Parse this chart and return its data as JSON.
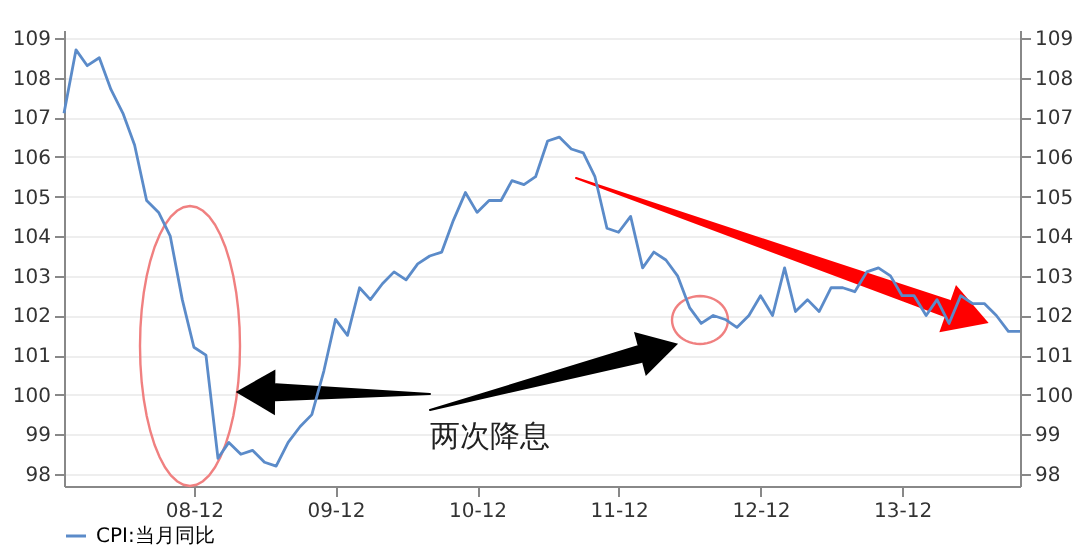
{
  "chart_data": {
    "type": "line",
    "x": [
      "2008-01",
      "2008-02",
      "2008-03",
      "2008-04",
      "2008-05",
      "2008-06",
      "2008-07",
      "2008-08",
      "2008-09",
      "2008-10",
      "2008-11",
      "2008-12",
      "2009-01",
      "2009-02",
      "2009-03",
      "2009-04",
      "2009-05",
      "2009-06",
      "2009-07",
      "2009-08",
      "2009-09",
      "2009-10",
      "2009-11",
      "2009-12",
      "2010-01",
      "2010-02",
      "2010-03",
      "2010-04",
      "2010-05",
      "2010-06",
      "2010-07",
      "2010-08",
      "2010-09",
      "2010-10",
      "2010-11",
      "2010-12",
      "2011-01",
      "2011-02",
      "2011-03",
      "2011-04",
      "2011-05",
      "2011-06",
      "2011-07",
      "2011-08",
      "2011-09",
      "2011-10",
      "2011-11",
      "2011-12",
      "2012-01",
      "2012-02",
      "2012-03",
      "2012-04",
      "2012-05",
      "2012-06",
      "2012-07",
      "2012-08",
      "2012-09",
      "2012-10",
      "2012-11",
      "2012-12",
      "2013-01",
      "2013-02",
      "2013-03",
      "2013-04",
      "2013-05",
      "2013-06",
      "2013-07",
      "2013-08",
      "2013-09",
      "2013-10",
      "2013-11",
      "2013-12",
      "2014-01",
      "2014-02",
      "2014-03",
      "2014-04",
      "2014-05",
      "2014-06",
      "2014-07",
      "2014-08",
      "2014-09",
      "2014-10"
    ],
    "series": [
      {
        "name": "CPI:当月同比",
        "color": "#5b8bc9",
        "values": [
          107.1,
          108.7,
          108.3,
          108.5,
          107.7,
          107.1,
          106.3,
          104.9,
          104.6,
          104.0,
          102.4,
          101.2,
          101.0,
          98.4,
          98.8,
          98.5,
          98.6,
          98.3,
          98.2,
          98.8,
          99.2,
          99.5,
          100.6,
          101.9,
          101.5,
          102.7,
          102.4,
          102.8,
          103.1,
          102.9,
          103.3,
          103.5,
          103.6,
          104.4,
          105.1,
          104.6,
          104.9,
          104.9,
          105.4,
          105.3,
          105.5,
          106.4,
          106.5,
          106.2,
          106.1,
          105.5,
          104.2,
          104.1,
          104.5,
          103.2,
          103.6,
          103.4,
          103.0,
          102.2,
          101.8,
          102.0,
          101.9,
          101.7,
          102.0,
          102.5,
          102.0,
          103.2,
          102.1,
          102.4,
          102.1,
          102.7,
          102.7,
          102.6,
          103.1,
          103.2,
          103.0,
          102.5,
          102.5,
          102.0,
          102.4,
          101.8,
          102.5,
          102.3,
          102.3,
          102.0,
          101.6,
          101.6
        ]
      }
    ],
    "xlim": [
      "2008-01",
      "2014-10"
    ],
    "xticks": [
      {
        "value": "2008-12",
        "label": "08-12"
      },
      {
        "value": "2009-12",
        "label": "09-12"
      },
      {
        "value": "2010-12",
        "label": "10-12"
      },
      {
        "value": "2011-12",
        "label": "11-12"
      },
      {
        "value": "2012-12",
        "label": "12-12"
      },
      {
        "value": "2013-12",
        "label": "13-12"
      }
    ],
    "ylim": [
      97.7,
      109.2
    ],
    "yticks": [
      98,
      99,
      100,
      101,
      102,
      103,
      104,
      105,
      106,
      107,
      108,
      109
    ],
    "y2lim": [
      97.7,
      109.2
    ],
    "y2ticks": [
      98,
      99,
      100,
      101,
      102,
      103,
      104,
      105,
      106,
      107,
      108,
      109
    ],
    "grid": "y",
    "legend": "bottom",
    "marker": "none",
    "line_style": "solid",
    "annotations": [
      "两次降息"
    ]
  }
}
